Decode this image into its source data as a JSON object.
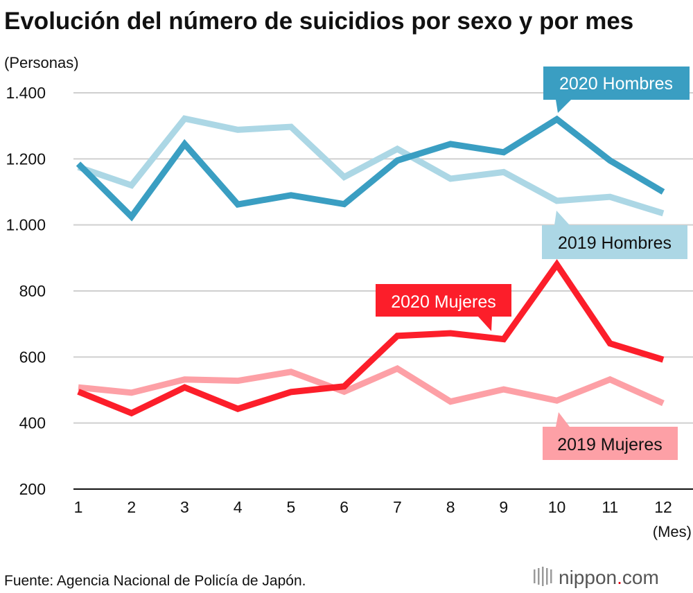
{
  "chart_data": {
    "type": "line",
    "title": "Evolución del número de suicidios por sexo y por mes",
    "ylabel": "(Personas)",
    "xlabel": "(Mes)",
    "ylim": [
      200,
      1400
    ],
    "yticks": [
      200,
      400,
      600,
      800,
      1000,
      1200,
      1400
    ],
    "ytick_labels": [
      "200",
      "400",
      "600",
      "800",
      "1.000",
      "1.200",
      "1.400"
    ],
    "categories": [
      "1",
      "2",
      "3",
      "4",
      "5",
      "6",
      "7",
      "8",
      "9",
      "10",
      "11",
      "12"
    ],
    "series": [
      {
        "name": "2019 Hombres",
        "color": "#acd7e5",
        "text_color": "#111111",
        "values": [
          1175,
          1120,
          1322,
          1288,
          1297,
          1145,
          1230,
          1140,
          1160,
          1073,
          1085,
          1035
        ]
      },
      {
        "name": "2020 Hombres",
        "color": "#3a9ec2",
        "text_color": "#ffffff",
        "values": [
          1185,
          1025,
          1245,
          1062,
          1090,
          1063,
          1195,
          1245,
          1220,
          1320,
          1195,
          1100
        ]
      },
      {
        "name": "2019 Mujeres",
        "color": "#fda0a6",
        "text_color": "#111111",
        "values": [
          508,
          492,
          532,
          528,
          555,
          495,
          565,
          465,
          502,
          468,
          532,
          460
        ]
      },
      {
        "name": "2020 Mujeres",
        "color": "#fc1e2a",
        "text_color": "#ffffff",
        "values": [
          495,
          430,
          508,
          443,
          494,
          511,
          664,
          672,
          654,
          880,
          641,
          592
        ]
      }
    ],
    "grid": true,
    "annotations": [
      "2020 Hombres",
      "2019 Hombres",
      "2020 Mujeres",
      "2019 Mujeres"
    ]
  },
  "footer": {
    "source": "Fuente: Agencia Nacional de Policía de Japón.",
    "brand_main": "nippon",
    "brand_dot": ".",
    "brand_suffix": "com",
    "brand_dot_color": "#e60012"
  }
}
